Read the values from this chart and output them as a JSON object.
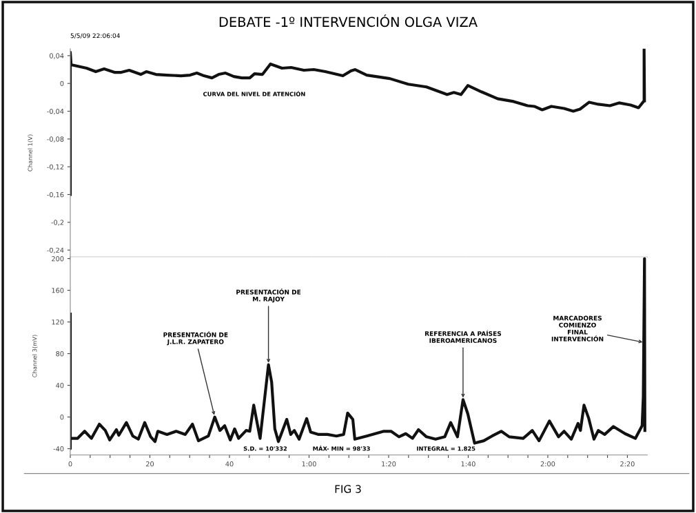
{
  "chart_data": [
    {
      "type": "line",
      "title": "DEBATE -1º INTERVENCIÓN OLGA VIZA",
      "ylabel": "Channel 1(V)",
      "xlim": [
        0,
        145
      ],
      "ylim": [
        -0.25,
        0.05
      ],
      "yticks": [
        {
          "value": 0.04,
          "label": "0,04"
        },
        0,
        {
          "value": -0.04,
          "label": "-0,04"
        },
        {
          "value": -0.08,
          "label": "-0,08"
        },
        {
          "value": -0.12,
          "label": "-0,12"
        },
        {
          "value": -0.16,
          "label": "-0,16"
        },
        {
          "value": -0.2,
          "label": "-0,2"
        },
        {
          "value": -0.24,
          "label": "-0,24"
        }
      ],
      "xticks": [
        0,
        20,
        40,
        60,
        80,
        100,
        120,
        140
      ],
      "tick_labels": "y",
      "grid": false,
      "legend": false,
      "marker": "none",
      "line_style": "solid",
      "annotations": [
        "5/5/09 22:06:04",
        "CURVA DEL NIVEL DE ATENCIÓN"
      ],
      "series": [
        {
          "color": "#111111",
          "x": [
            0,
            0,
            0.2,
            4.1,
            6.4,
            8.5,
            11.1,
            12.8,
            14.8,
            17.7,
            19.1,
            21.5,
            24.3,
            27.8,
            30.1,
            31.8,
            33.6,
            35.6,
            37.3,
            39.0,
            41.1,
            43.1,
            45.1,
            46.3,
            48.3,
            50.3,
            53.2,
            55.5,
            58.7,
            61.2,
            64.1,
            68.5,
            70.5,
            71.6,
            74.5,
            80.3,
            84.9,
            89.5,
            94.7,
            96.4,
            98.2,
            99.9,
            103.3,
            107.4,
            111.4,
            114.9,
            116.6,
            118.6,
            120.9,
            124.1,
            126.4,
            128.1,
            130.4,
            132.7,
            135.6,
            137.9,
            140.8,
            142.8,
            144.2,
            144.2,
            144.3
          ],
          "values": [
            -0.16,
            0.045,
            0.027,
            0.022,
            0.017,
            0.021,
            0.016,
            0.016,
            0.019,
            0.013,
            0.017,
            0.013,
            0.012,
            0.011,
            0.012,
            0.015,
            0.011,
            0.008,
            0.013,
            0.015,
            0.01,
            0.008,
            0.008,
            0.014,
            0.013,
            0.028,
            0.022,
            0.023,
            0.019,
            0.02,
            0.017,
            0.011,
            0.018,
            0.02,
            0.012,
            0.007,
            -0.001,
            -0.005,
            -0.016,
            -0.013,
            -0.016,
            -0.003,
            -0.012,
            -0.022,
            -0.026,
            -0.032,
            -0.033,
            -0.038,
            -0.033,
            -0.036,
            -0.04,
            -0.037,
            -0.027,
            -0.03,
            -0.032,
            -0.028,
            -0.031,
            -0.035,
            -0.025,
            0.05,
            -0.025
          ]
        }
      ]
    },
    {
      "type": "line",
      "ylabel": "Channel 3(mV)",
      "xlim": [
        0,
        145
      ],
      "ylim": [
        -48,
        202
      ],
      "yticks": [
        200,
        160,
        120,
        80,
        40,
        0,
        -40
      ],
      "xticks": [
        {
          "value": 0,
          "label": "0"
        },
        {
          "value": 5,
          "label": null
        },
        {
          "value": 10,
          "label": null
        },
        {
          "value": 15,
          "label": null
        },
        {
          "value": 20,
          "label": "20"
        },
        {
          "value": 25,
          "label": null
        },
        {
          "value": 30,
          "label": null
        },
        {
          "value": 35,
          "label": null
        },
        {
          "value": 40,
          "label": "40"
        },
        {
          "value": 45,
          "label": null
        },
        {
          "value": 50,
          "label": null
        },
        {
          "value": 55,
          "label": null
        },
        {
          "value": 60,
          "label": "1:00"
        },
        {
          "value": 65,
          "label": null
        },
        {
          "value": 70,
          "label": null
        },
        {
          "value": 75,
          "label": null
        },
        {
          "value": 80,
          "label": "1:20"
        },
        {
          "value": 85,
          "label": null
        },
        {
          "value": 90,
          "label": null
        },
        {
          "value": 95,
          "label": null
        },
        {
          "value": 100,
          "label": "1:40"
        },
        {
          "value": 105,
          "label": null
        },
        {
          "value": 110,
          "label": null
        },
        {
          "value": 115,
          "label": null
        },
        {
          "value": 120,
          "label": "2:00"
        },
        {
          "value": 125,
          "label": null
        },
        {
          "value": 130,
          "label": null
        },
        {
          "value": 135,
          "label": null
        },
        {
          "value": 140,
          "label": "2:20"
        }
      ],
      "grid": false,
      "legend": false,
      "marker": "none",
      "line_style": "solid",
      "annotations": [
        {
          "text": "PRESENTACIÓN DE\nJ.L.R. ZAPATERO",
          "x": 36.3,
          "y": 0
        },
        {
          "text": "PRESENTACIÓN DE\nM. RAJOY",
          "x": 49.8,
          "y": 66
        },
        {
          "text": "REFERENCIA A PAÍSES\nIBEROAMERICANOS",
          "x": 98.7,
          "y": 22
        },
        {
          "text": "MARCADORES\nCOMIENZO\nFINAL\nINTERVENCIÓN",
          "x": 144.3,
          "y": 94
        },
        "S.D. = 10'332",
        "MÁX- MIN = 98'33",
        "INTEGRAL = 1.825",
        "FIG 3"
      ],
      "series": [
        {
          "color": "#111111",
          "x": [
            0,
            0,
            0,
            1.8,
            3.6,
            5.3,
            7.3,
            8.8,
            9.9,
            11.6,
            12.2,
            14.1,
            15.7,
            17.1,
            18.7,
            20.2,
            21.3,
            22,
            24.3,
            26.6,
            28.9,
            30.7,
            32.2,
            34.7,
            36.3,
            37.6,
            38.8,
            40.2,
            41.3,
            42.3,
            44.2,
            45.1,
            46.1,
            47.7,
            49.8,
            50.6,
            51.4,
            52.3,
            54.4,
            55.4,
            56.3,
            57.5,
            59.4,
            60.4,
            62.4,
            64.6,
            66.9,
            68.7,
            69.7,
            71.0,
            71.5,
            74.5,
            78.8,
            80.6,
            82.6,
            84.3,
            86.0,
            87.5,
            89.5,
            91.8,
            94.1,
            95.6,
            97.3,
            98.7,
            99.9,
            101.6,
            103.9,
            106.0,
            108.3,
            110.3,
            113.8,
            116.1,
            117.8,
            120.4,
            122.7,
            124.1,
            125.9,
            127.6,
            128.2,
            129.1,
            130.3,
            131.6,
            132.7,
            134.3,
            136.5,
            139.4,
            142.0,
            143.7,
            144.0,
            144.3,
            144.4
          ],
          "values": [
            130,
            -40,
            -27,
            -27,
            -18,
            -27,
            -9,
            -17,
            -29,
            -16,
            -23,
            -7,
            -24,
            -28,
            -7,
            -25,
            -31,
            -18,
            -22,
            -18,
            -22,
            -9,
            -30,
            -24,
            0,
            -17,
            -11,
            -29,
            -15,
            -27,
            -17,
            -18,
            15,
            -27,
            66,
            44,
            -15,
            -31,
            -3,
            -22,
            -17,
            -28,
            -2,
            -19,
            -22,
            -22,
            -24,
            -22,
            5,
            -3,
            -28,
            -24,
            -18,
            -18,
            -25,
            -21,
            -27,
            -16,
            -25,
            -28,
            -25,
            -7,
            -25,
            22,
            4,
            -33,
            -30,
            -24,
            -18,
            -25,
            -27,
            -17,
            -30,
            -5,
            -25,
            -18,
            -28,
            -8,
            -17,
            15,
            -2,
            -28,
            -17,
            -22,
            -12,
            -21,
            -27,
            -11,
            26,
            200,
            -17
          ]
        }
      ]
    }
  ]
}
